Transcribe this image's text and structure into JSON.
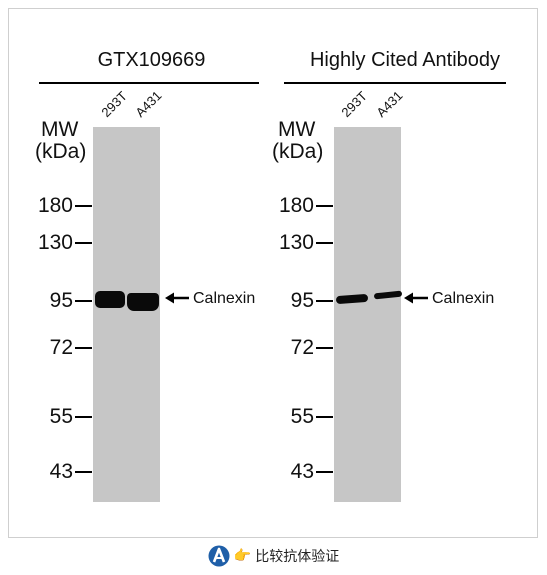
{
  "figure": {
    "left_panel": {
      "title": "GTX109669",
      "lanes": [
        "293T",
        "A431"
      ],
      "mw_label_line1": "MW",
      "mw_label_line2": "(kDa)",
      "markers": [
        "180",
        "130",
        "95",
        "72",
        "55",
        "43"
      ],
      "target_label": "Calnexin"
    },
    "right_panel": {
      "title": "Highly Cited Antibody",
      "lanes": [
        "293T",
        "A431"
      ],
      "mw_label_line1": "MW",
      "mw_label_line2": "(kDa)",
      "markers": [
        "180",
        "130",
        "95",
        "72",
        "55",
        "43"
      ],
      "target_label": "Calnexin"
    }
  },
  "footer": {
    "logo_icon": "a-logo-icon",
    "pointer_icon": "pointing-hand-icon",
    "label": "比较抗体验证"
  }
}
